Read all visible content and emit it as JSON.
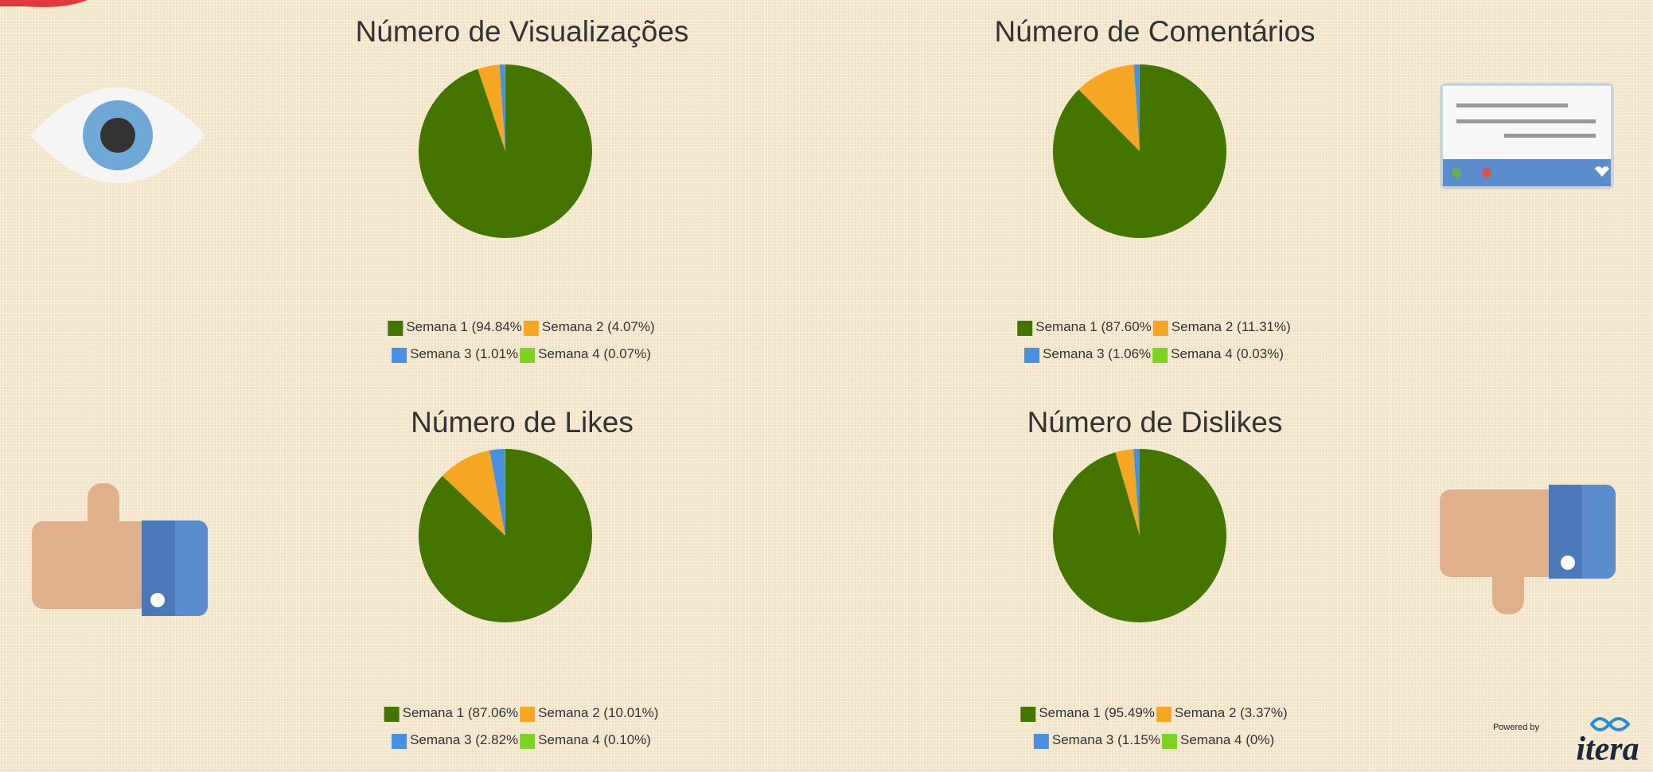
{
  "chart_data": [
    {
      "type": "pie",
      "title": "Número de Visualizações",
      "categories": [
        "Semana 1",
        "Semana 2",
        "Semana 3",
        "Semana 4"
      ],
      "values": [
        94.84,
        4.07,
        1.01,
        0.07
      ],
      "value_labels": [
        "(94.84%",
        "(4.07%)",
        "(1.01%",
        "(0.07%)"
      ],
      "colors": [
        "#437500",
        "#f5a623",
        "#4a90e2",
        "#7ed321"
      ]
    },
    {
      "type": "pie",
      "title": "Número de Comentários",
      "categories": [
        "Semana 1",
        "Semana 2",
        "Semana 3",
        "Semana 4"
      ],
      "values": [
        87.6,
        11.31,
        1.06,
        0.03
      ],
      "value_labels": [
        "(87.60%",
        "(11.31%)",
        "(1.06%",
        "(0.03%)"
      ],
      "colors": [
        "#437500",
        "#f5a623",
        "#4a90e2",
        "#7ed321"
      ]
    },
    {
      "type": "pie",
      "title": "Número de Likes",
      "categories": [
        "Semana 1",
        "Semana 2",
        "Semana 3",
        "Semana 4"
      ],
      "values": [
        87.06,
        10.01,
        2.82,
        0.1
      ],
      "value_labels": [
        "(87.06%",
        "(10.01%)",
        "(2.82%",
        "(0.10%)"
      ],
      "colors": [
        "#437500",
        "#f5a623",
        "#4a90e2",
        "#7ed321"
      ]
    },
    {
      "type": "pie",
      "title": "Número de Dislikes",
      "categories": [
        "Semana 1",
        "Semana 2",
        "Semana 3",
        "Semana 4"
      ],
      "values": [
        95.49,
        3.37,
        1.15,
        0
      ],
      "value_labels": [
        "(95.49%",
        "(3.37%)",
        "(1.15%",
        "(0%)"
      ],
      "colors": [
        "#437500",
        "#f5a623",
        "#4a90e2",
        "#7ed321"
      ]
    }
  ],
  "footer": {
    "powered_by": "Powered by",
    "brand": "itera"
  }
}
